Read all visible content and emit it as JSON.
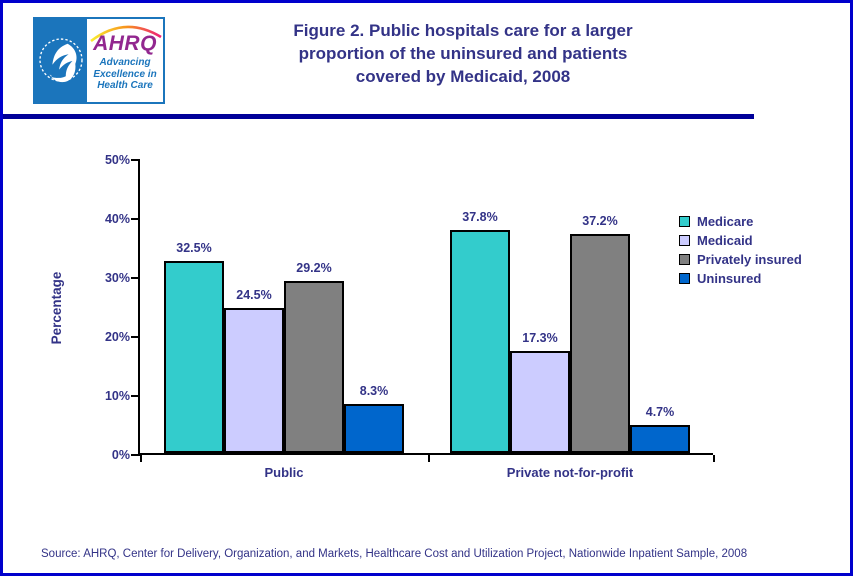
{
  "header": {
    "logo": {
      "name": "AHRQ",
      "tagline": [
        "Advancing",
        "Excellence in",
        "Health Care"
      ],
      "seal_icon": "hhs-eagle-seal"
    },
    "title_lines": [
      "Figure 2. Public hospitals care for a larger",
      "proportion of the uninsured and patients",
      "covered by Medicaid, 2008"
    ]
  },
  "chart_data": {
    "type": "bar",
    "categories": [
      "Public",
      "Private not-for-profit"
    ],
    "series": [
      {
        "name": "Medicare",
        "color": "#33cccc",
        "values": [
          32.5,
          37.8
        ]
      },
      {
        "name": "Medicaid",
        "color": "#ccccff",
        "values": [
          24.5,
          17.3
        ]
      },
      {
        "name": "Privately insured",
        "color": "#808080",
        "values": [
          29.2,
          37.2
        ]
      },
      {
        "name": "Uninsured",
        "color": "#0066cc",
        "values": [
          8.3,
          4.7
        ]
      }
    ],
    "data_labels": [
      [
        "32.5%",
        "37.8%"
      ],
      [
        "24.5%",
        "17.3%"
      ],
      [
        "29.2%",
        "37.2%"
      ],
      [
        "8.3%",
        "4.7%"
      ]
    ],
    "xlabel": "",
    "ylabel": "Percentage",
    "ylim": [
      0,
      50
    ],
    "yticks": [
      "0%",
      "10%",
      "20%",
      "30%",
      "40%",
      "50%"
    ],
    "grid": false,
    "legend_position": "right"
  },
  "footer": {
    "source": "Source: AHRQ, Center for Delivery, Organization, and Markets, Healthcare Cost and Utilization Project, Nationwide Inpatient Sample, 2008"
  },
  "colors": {
    "outer_border": "#0000cc",
    "header_divider": "#000099",
    "text_navy": "#333387",
    "axis_black": "#000000",
    "hhs_blue": "#1b75bc",
    "ahrq_purple": "#92278f",
    "arc_orange": "#f7941d",
    "arc_pink": "#ed1e79"
  }
}
